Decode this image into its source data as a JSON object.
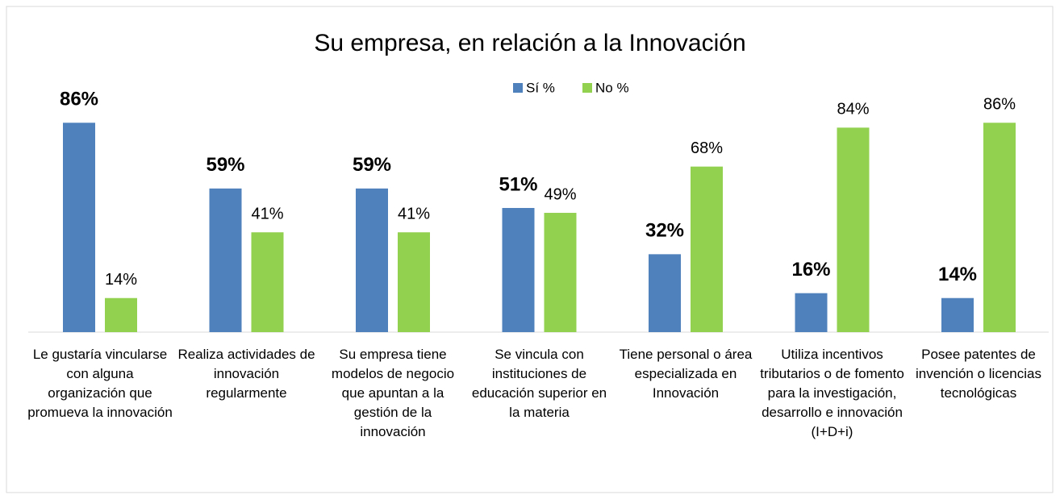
{
  "chart_data": {
    "type": "bar",
    "title": "Su empresa, en relación a la Innovación",
    "categories": [
      "Le gustaría vincularse con alguna organización que promueva la innovación",
      "Realiza actividades de innovación regularmente",
      "Su empresa tiene modelos de negocio que apuntan a la gestión de la innovación",
      "Se vincula con instituciones de educación superior en la materia",
      "Tiene personal o área especializada en Innovación",
      "Utiliza incentivos tributarios o de fomento para la investigación, desarrollo e innovación (I+D+i)",
      "Posee patentes de invención o licencias tecnológicas"
    ],
    "series": [
      {
        "name": "Sí %",
        "color": "#4f81bd",
        "values": [
          86,
          59,
          59,
          51,
          32,
          16,
          14
        ],
        "value_labels": [
          "86%",
          "59%",
          "59%",
          "51%",
          "32%",
          "16%",
          "14%"
        ]
      },
      {
        "name": "No %",
        "color": "#92d050",
        "values": [
          14,
          41,
          41,
          49,
          68,
          84,
          86
        ],
        "value_labels": [
          "14%",
          "41%",
          "41%",
          "49%",
          "68%",
          "84%",
          "86%"
        ]
      }
    ],
    "legend": "top"
  }
}
